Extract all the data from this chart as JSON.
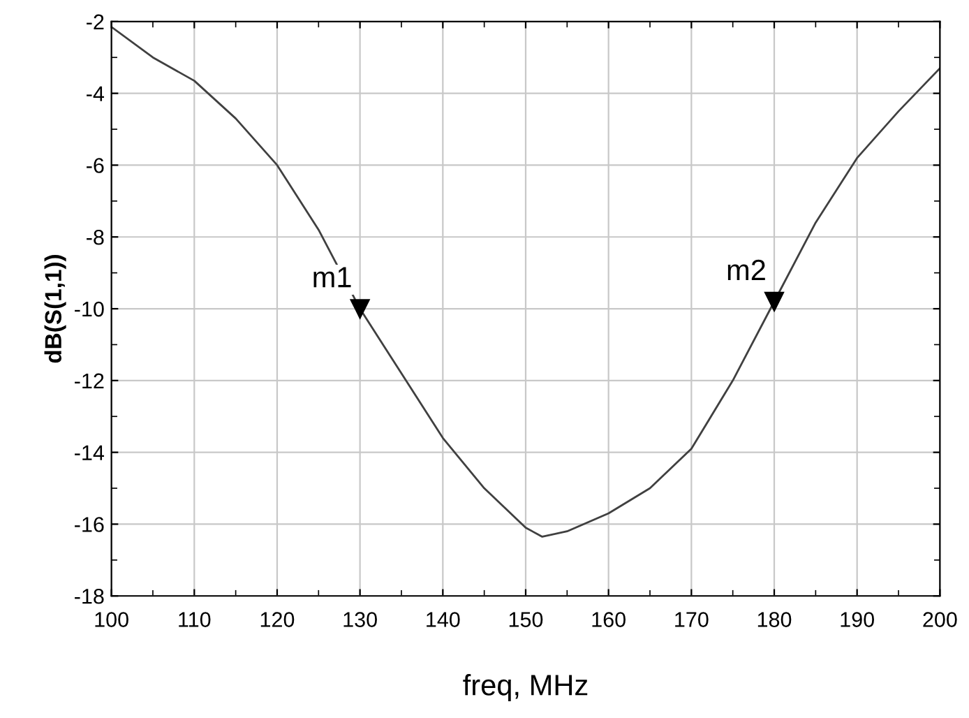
{
  "chart_data": {
    "type": "line",
    "xlabel": "freq, MHz",
    "ylabel": "dB(S(1,1))",
    "x": [
      100,
      105,
      110,
      115,
      120,
      125,
      130,
      135,
      140,
      145,
      150,
      152,
      155,
      160,
      165,
      170,
      175,
      180,
      185,
      190,
      195,
      200
    ],
    "series": [
      {
        "color": "#404040",
        "values": [
          -2.15,
          -3.0,
          -3.65,
          -4.7,
          -6.0,
          -7.8,
          -10.0,
          -11.8,
          -13.6,
          -15.0,
          -16.1,
          -16.35,
          -16.2,
          -15.7,
          -15.0,
          -13.9,
          -12.0,
          -9.8,
          -7.6,
          -5.8,
          -4.5,
          -3.3
        ]
      }
    ],
    "annotations": [
      {
        "text": "m1",
        "x": 130,
        "y": -10.0
      },
      {
        "text": "m2",
        "x": 180,
        "y": -9.8
      }
    ],
    "xlim": [
      100,
      200
    ],
    "ylim": [
      -18,
      -2
    ],
    "xticks": [
      100,
      110,
      120,
      130,
      140,
      150,
      160,
      170,
      180,
      190,
      200
    ],
    "yticks": [
      -18,
      -16,
      -14,
      -12,
      -10,
      -8,
      -6,
      -4,
      -2
    ],
    "grid": true,
    "legend": false,
    "marker": "none",
    "line_style": "solid"
  }
}
